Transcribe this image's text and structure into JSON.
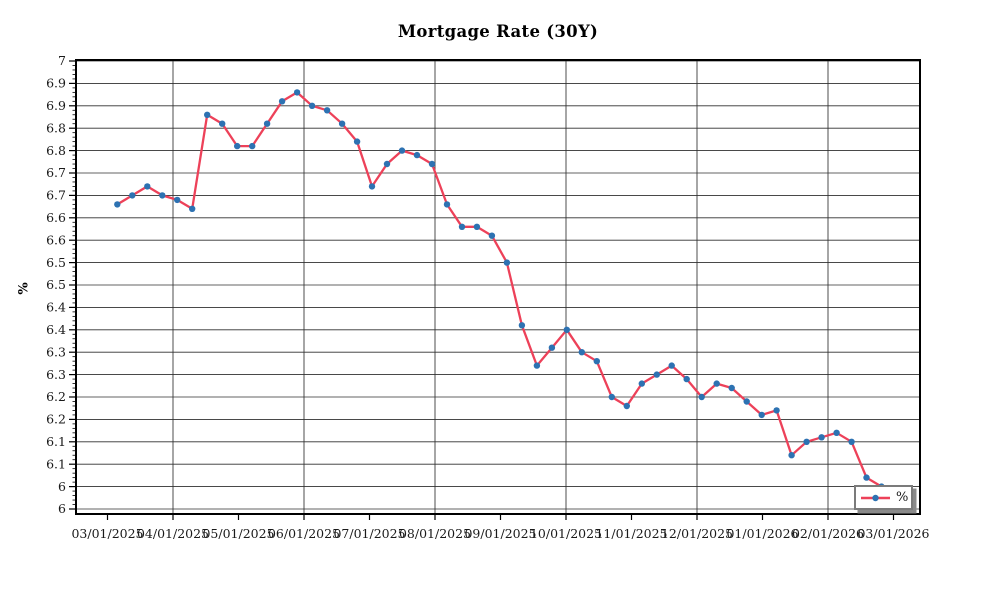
{
  "title": "Mortgage Rate (30Y)",
  "y_axis_label": "%",
  "legend": {
    "label": "%"
  },
  "colors": {
    "line": "#ed4159",
    "marker": "#2d72b2",
    "grid": "#2f2f2f",
    "axis": "#000000",
    "text": "#1a1a1a",
    "legend_border": "#7b7b7b",
    "legend_shadow": "#8a8a8a"
  },
  "chart_data": {
    "type": "line",
    "title": "Mortgage Rate (30Y)",
    "xlabel": "",
    "ylabel": "%",
    "grid": true,
    "legend_entries": [
      "%"
    ],
    "legend_position": "lower right",
    "ylim": [
      5.98,
      7.0
    ],
    "y_tick_step": 0.05,
    "y_tick_labels": [
      "7",
      "6.9",
      "6.9",
      "6.8",
      "6.8",
      "6.7",
      "6.7",
      "6.6",
      "6.6",
      "6.5",
      "6.5",
      "6.4",
      "6.4",
      "6.3",
      "6.3",
      "6.2",
      "6.2",
      "6.1",
      "6.1",
      "6",
      "6"
    ],
    "x_tick_labels": [
      "03/01/2025",
      "04/01/2025",
      "05/01/2025",
      "06/01/2025",
      "07/01/2025",
      "08/01/2025",
      "09/01/2025",
      "10/01/2025",
      "11/01/2025",
      "12/01/2025",
      "01/01/2026",
      "02/01/2026",
      "03/01/2026"
    ],
    "x_cadence": "weekly",
    "series": [
      {
        "name": "%",
        "values": [
          6.68,
          6.7,
          6.72,
          6.7,
          6.69,
          6.67,
          6.88,
          6.86,
          6.81,
          6.81,
          6.86,
          6.91,
          6.93,
          6.9,
          6.89,
          6.86,
          6.82,
          6.72,
          6.77,
          6.8,
          6.79,
          6.77,
          6.68,
          6.63,
          6.63,
          6.61,
          6.55,
          6.41,
          6.32,
          6.36,
          6.4,
          6.35,
          6.33,
          6.25,
          6.23,
          6.28,
          6.3,
          6.32,
          6.29,
          6.25,
          6.28,
          6.27,
          6.24,
          6.21,
          6.22,
          6.12,
          6.15,
          6.16,
          6.17,
          6.15,
          6.07,
          6.05
        ]
      }
    ]
  }
}
